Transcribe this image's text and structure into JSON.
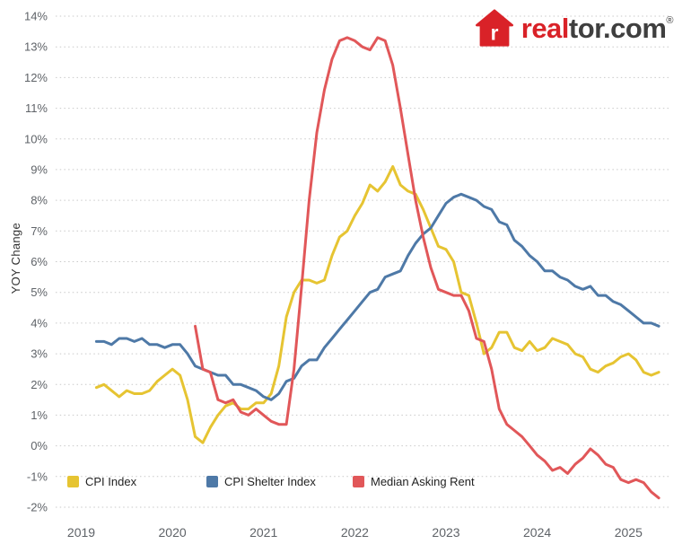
{
  "page": {
    "background": "#ffffff"
  },
  "logo": {
    "brand_red": "#d92228",
    "text_dark": "#3f3f3f",
    "house_letter": "r",
    "text_real": "real",
    "text_tor": "tor.com",
    "registered": "®"
  },
  "chart_data": {
    "type": "line",
    "title": "",
    "xlabel": "",
    "ylabel": "YOY Change",
    "ylim": [
      -2,
      14
    ],
    "xlim": [
      2018.72,
      2025.45
    ],
    "grid": "horizontal dotted",
    "legend_position": "bottom",
    "y_ticks": [
      {
        "v": 14,
        "label": "14%"
      },
      {
        "v": 13,
        "label": "13%"
      },
      {
        "v": 12,
        "label": "12%"
      },
      {
        "v": 11,
        "label": "11%"
      },
      {
        "v": 10,
        "label": "10%"
      },
      {
        "v": 9,
        "label": "9%"
      },
      {
        "v": 8,
        "label": "8%"
      },
      {
        "v": 7,
        "label": "7%"
      },
      {
        "v": 6,
        "label": "6%"
      },
      {
        "v": 5,
        "label": "5%"
      },
      {
        "v": 4,
        "label": "4%"
      },
      {
        "v": 3,
        "label": "3%"
      },
      {
        "v": 2,
        "label": "2%"
      },
      {
        "v": 1,
        "label": "1%"
      },
      {
        "v": 0,
        "label": "0%"
      },
      {
        "v": -1,
        "label": "-1%"
      },
      {
        "v": -2,
        "label": "-2%"
      }
    ],
    "x_ticks": [
      {
        "v": 2019,
        "label": "2019"
      },
      {
        "v": 2020,
        "label": "2020"
      },
      {
        "v": 2021,
        "label": "2021"
      },
      {
        "v": 2022,
        "label": "2022"
      },
      {
        "v": 2023,
        "label": "2023"
      },
      {
        "v": 2024,
        "label": "2024"
      },
      {
        "v": 2025,
        "label": "2025"
      }
    ],
    "series": [
      {
        "name": "CPI Index",
        "color": "#E6C432",
        "x_start": 2019.1667,
        "cadence": "monthly",
        "values": [
          1.9,
          2.0,
          1.8,
          1.6,
          1.8,
          1.7,
          1.7,
          1.8,
          2.1,
          2.3,
          2.5,
          2.3,
          1.5,
          0.3,
          0.1,
          0.6,
          1.0,
          1.3,
          1.4,
          1.2,
          1.2,
          1.4,
          1.4,
          1.7,
          2.6,
          4.2,
          5.0,
          5.4,
          5.4,
          5.3,
          5.4,
          6.2,
          6.8,
          7.0,
          7.5,
          7.9,
          8.5,
          8.3,
          8.6,
          9.1,
          8.5,
          8.3,
          8.2,
          7.7,
          7.1,
          6.5,
          6.4,
          6.0,
          5.0,
          4.9,
          4.0,
          3.0,
          3.2,
          3.7,
          3.7,
          3.2,
          3.1,
          3.4,
          3.1,
          3.2,
          3.5,
          3.4,
          3.3,
          3.0,
          2.9,
          2.5,
          2.4,
          2.6,
          2.7,
          2.9,
          3.0,
          2.8,
          2.4,
          2.3,
          2.4
        ]
      },
      {
        "name": "CPI Shelter Index",
        "color": "#4E79A7",
        "x_start": 2019.1667,
        "cadence": "monthly",
        "values": [
          3.4,
          3.4,
          3.3,
          3.5,
          3.5,
          3.4,
          3.5,
          3.3,
          3.3,
          3.2,
          3.3,
          3.3,
          3.0,
          2.6,
          2.5,
          2.4,
          2.3,
          2.3,
          2.0,
          2.0,
          1.9,
          1.8,
          1.6,
          1.5,
          1.7,
          2.1,
          2.2,
          2.6,
          2.8,
          2.8,
          3.2,
          3.5,
          3.8,
          4.1,
          4.4,
          4.7,
          5.0,
          5.1,
          5.5,
          5.6,
          5.7,
          6.2,
          6.6,
          6.9,
          7.1,
          7.5,
          7.9,
          8.1,
          8.2,
          8.1,
          8.0,
          7.8,
          7.7,
          7.3,
          7.2,
          6.7,
          6.5,
          6.2,
          6.0,
          5.7,
          5.7,
          5.5,
          5.4,
          5.2,
          5.1,
          5.2,
          4.9,
          4.9,
          4.7,
          4.6,
          4.4,
          4.2,
          4.0,
          4.0,
          3.9
        ]
      },
      {
        "name": "Median Asking Rent",
        "color": "#E15759",
        "x_start": 2020.25,
        "cadence": "monthly",
        "values": [
          3.9,
          2.5,
          2.4,
          1.5,
          1.4,
          1.5,
          1.1,
          1.0,
          1.2,
          1.0,
          0.8,
          0.7,
          0.7,
          2.5,
          5.2,
          8.0,
          10.2,
          11.6,
          12.6,
          13.2,
          13.3,
          13.2,
          13.0,
          12.9,
          13.3,
          13.2,
          12.4,
          11.0,
          9.5,
          8.0,
          6.8,
          5.8,
          5.1,
          5.0,
          4.9,
          4.9,
          4.4,
          3.5,
          3.4,
          2.5,
          1.2,
          0.7,
          0.5,
          0.3,
          0.0,
          -0.3,
          -0.5,
          -0.8,
          -0.7,
          -0.9,
          -0.6,
          -0.4,
          -0.1,
          -0.3,
          -0.6,
          -0.7,
          -1.1,
          -1.2,
          -1.1,
          -1.2,
          -1.5,
          -1.7
        ]
      }
    ]
  }
}
